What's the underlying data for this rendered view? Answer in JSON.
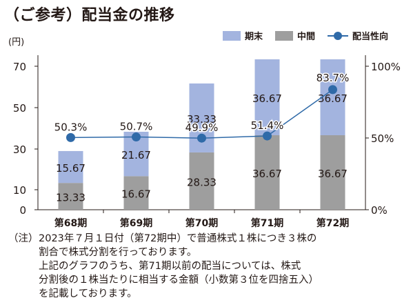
{
  "title": "（ご参考）配当金の推移",
  "unit_label": "(円)",
  "legend": {
    "kimatsu": "期末",
    "chukan": "中間",
    "payout": "配当性向"
  },
  "colors": {
    "kimatsu": "#a3b4df",
    "chukan": "#9e9e9e",
    "payout": "#2f6aa8"
  },
  "chart_data": {
    "type": "bar",
    "stacked": true,
    "categories": [
      "第68期",
      "第69期",
      "第70期",
      "第71期",
      "第72期"
    ],
    "series": [
      {
        "name": "中間",
        "values": [
          13.33,
          16.67,
          28.33,
          36.67,
          36.67
        ],
        "labels": [
          "13.33",
          "16.67",
          "28.33",
          "36.67",
          "36.67"
        ]
      },
      {
        "name": "期末",
        "values": [
          15.67,
          21.67,
          33.33,
          36.67,
          36.67
        ],
        "labels": [
          "15.67",
          "21.67",
          "33.33",
          "36.67",
          "36.67"
        ]
      }
    ],
    "line_series": {
      "name": "配当性向",
      "values": [
        50.3,
        50.7,
        49.9,
        51.4,
        83.7
      ],
      "labels": [
        "50.3%",
        "50.7%",
        "49.9%",
        "51.4%",
        "83.7%"
      ]
    },
    "ylim": [
      0,
      70
    ],
    "y_ticks": [
      "0",
      "10",
      "30",
      "50",
      "70"
    ],
    "y2lim": [
      0,
      100
    ],
    "y2_ticks": [
      "0%",
      "50%",
      "100%"
    ],
    "legend_position": "top-right",
    "grid": false
  },
  "note": {
    "label": "（注）",
    "lines": [
      "2023年７月１日付（第72期中）で普通株式１株につき３株の",
      "割合で株式分割を行っております。",
      "上記のグラフのうち、第71期以前の配当については、株式",
      "分割後の１株当たりに相当する金額（小数第３位を四捨五入）",
      "を記載しております。"
    ]
  }
}
